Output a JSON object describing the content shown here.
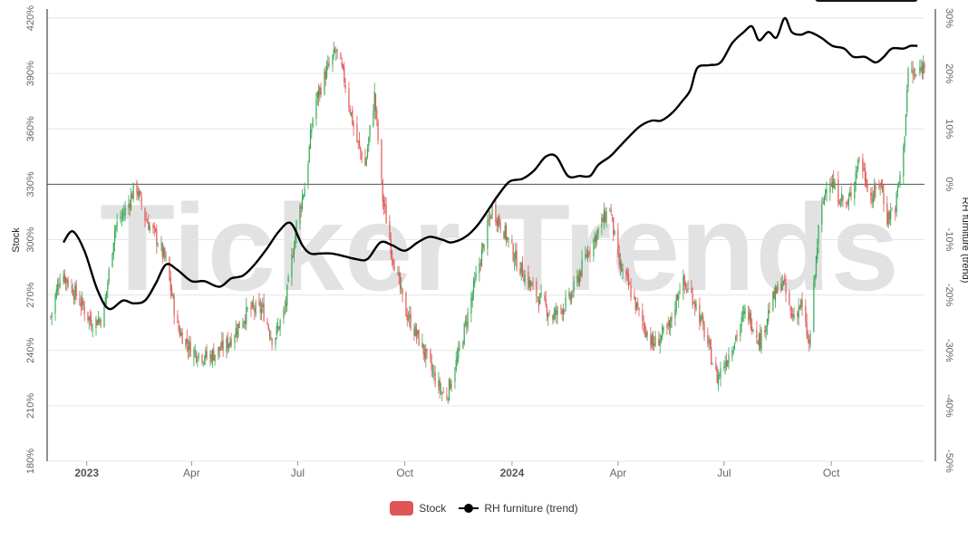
{
  "watermark": "Ticker Trends",
  "colors": {
    "up": "#34a853",
    "down": "#e05555",
    "trend": "#000000",
    "grid": "#e3e6ef",
    "axis": "#666666",
    "bg": "#ffffff"
  },
  "legend": {
    "stock_label": "Stock",
    "trend_label": "RH furniture  (trend)"
  },
  "chart_data": {
    "type": "line",
    "title": "",
    "xlabel": "",
    "ylabel_left": "Stock",
    "ylabel_right": "RH furniture  (trend)",
    "x_range": [
      "2022-11-28",
      "2024-12-20"
    ],
    "x_ticks": [
      {
        "date": "2023-01-01",
        "label": "2023",
        "bold": true
      },
      {
        "date": "2023-04-01",
        "label": "Apr",
        "bold": false
      },
      {
        "date": "2023-07-01",
        "label": "Jul",
        "bold": false
      },
      {
        "date": "2023-10-01",
        "label": "Oct",
        "bold": false
      },
      {
        "date": "2024-01-01",
        "label": "2024",
        "bold": true
      },
      {
        "date": "2024-04-01",
        "label": "Apr",
        "bold": false
      },
      {
        "date": "2024-07-01",
        "label": "Jul",
        "bold": false
      },
      {
        "date": "2024-10-01",
        "label": "Oct",
        "bold": false
      }
    ],
    "y_left": {
      "min": 180,
      "max": 420,
      "unit": "%",
      "ticks": [
        "180%",
        "210%",
        "240%",
        "270%",
        "300%",
        "330%",
        "360%",
        "390%",
        "420%"
      ]
    },
    "y_right": {
      "min": -50,
      "max": 30,
      "unit": "%",
      "ticks": [
        "-50%",
        "-40%",
        "-30%",
        "-20%",
        "-10%",
        "0%",
        "10%",
        "20%",
        "30%"
      ]
    },
    "grid": true,
    "legend_position": "bottom-center",
    "stock_close_anchors": [
      [
        "2022-12-01",
        258
      ],
      [
        "2022-12-10",
        283
      ],
      [
        "2022-12-25",
        268
      ],
      [
        "2023-01-05",
        255
      ],
      [
        "2023-01-15",
        258
      ],
      [
        "2023-01-25",
        306
      ],
      [
        "2023-02-05",
        318
      ],
      [
        "2023-02-12",
        330
      ],
      [
        "2023-02-20",
        312
      ],
      [
        "2023-03-01",
        302
      ],
      [
        "2023-03-10",
        288
      ],
      [
        "2023-03-20",
        252
      ],
      [
        "2023-04-01",
        240
      ],
      [
        "2023-04-15",
        236
      ],
      [
        "2023-05-01",
        243
      ],
      [
        "2023-05-20",
        262
      ],
      [
        "2023-06-01",
        262
      ],
      [
        "2023-06-10",
        245
      ],
      [
        "2023-06-20",
        262
      ],
      [
        "2023-06-30",
        308
      ],
      [
        "2023-07-08",
        332
      ],
      [
        "2023-07-15",
        372
      ],
      [
        "2023-07-25",
        390
      ],
      [
        "2023-08-03",
        402
      ],
      [
        "2023-08-10",
        387
      ],
      [
        "2023-08-20",
        355
      ],
      [
        "2023-08-28",
        340
      ],
      [
        "2023-09-05",
        378
      ],
      [
        "2023-09-12",
        322
      ],
      [
        "2023-09-20",
        293
      ],
      [
        "2023-10-01",
        262
      ],
      [
        "2023-10-15",
        243
      ],
      [
        "2023-10-30",
        220
      ],
      [
        "2023-11-05",
        214
      ],
      [
        "2023-11-15",
        235
      ],
      [
        "2023-11-25",
        262
      ],
      [
        "2023-12-05",
        290
      ],
      [
        "2023-12-15",
        317
      ],
      [
        "2023-12-25",
        305
      ],
      [
        "2024-01-05",
        288
      ],
      [
        "2024-01-20",
        272
      ],
      [
        "2024-02-05",
        258
      ],
      [
        "2024-02-20",
        268
      ],
      [
        "2024-03-05",
        292
      ],
      [
        "2024-03-15",
        305
      ],
      [
        "2024-03-25",
        318
      ],
      [
        "2024-04-01",
        288
      ],
      [
        "2024-04-10",
        275
      ],
      [
        "2024-04-20",
        258
      ],
      [
        "2024-05-01",
        243
      ],
      [
        "2024-05-15",
        252
      ],
      [
        "2024-05-25",
        278
      ],
      [
        "2024-06-05",
        268
      ],
      [
        "2024-06-15",
        248
      ],
      [
        "2024-06-25",
        225
      ],
      [
        "2024-07-05",
        238
      ],
      [
        "2024-07-20",
        262
      ],
      [
        "2024-08-01",
        245
      ],
      [
        "2024-08-10",
        265
      ],
      [
        "2024-08-20",
        278
      ],
      [
        "2024-08-28",
        258
      ],
      [
        "2024-09-05",
        265
      ],
      [
        "2024-09-12",
        242
      ],
      [
        "2024-09-20",
        305
      ],
      [
        "2024-09-28",
        335
      ],
      [
        "2024-10-05",
        326
      ],
      [
        "2024-10-15",
        318
      ],
      [
        "2024-10-25",
        345
      ],
      [
        "2024-11-05",
        322
      ],
      [
        "2024-11-12",
        332
      ],
      [
        "2024-11-18",
        312
      ],
      [
        "2024-11-25",
        318
      ],
      [
        "2024-12-02",
        348
      ],
      [
        "2024-12-06",
        392
      ],
      [
        "2024-12-12",
        388
      ],
      [
        "2024-12-20",
        395
      ]
    ],
    "trend_series": [
      [
        "2022-12-12",
        -10.5
      ],
      [
        "2022-12-20",
        -8.5
      ],
      [
        "2022-12-30",
        -12
      ],
      [
        "2023-01-10",
        -19
      ],
      [
        "2023-01-20",
        -22.5
      ],
      [
        "2023-02-01",
        -21
      ],
      [
        "2023-02-10",
        -21.5
      ],
      [
        "2023-02-20",
        -21
      ],
      [
        "2023-03-01",
        -18
      ],
      [
        "2023-03-10",
        -14.5
      ],
      [
        "2023-03-20",
        -15.5
      ],
      [
        "2023-04-01",
        -17.5
      ],
      [
        "2023-04-12",
        -17.5
      ],
      [
        "2023-04-25",
        -18.5
      ],
      [
        "2023-05-05",
        -17
      ],
      [
        "2023-05-15",
        -16.5
      ],
      [
        "2023-05-25",
        -14.5
      ],
      [
        "2023-06-05",
        -11.5
      ],
      [
        "2023-06-15",
        -8.5
      ],
      [
        "2023-06-25",
        -7
      ],
      [
        "2023-07-05",
        -11
      ],
      [
        "2023-07-12",
        -12.5
      ],
      [
        "2023-07-20",
        -12.5
      ],
      [
        "2023-07-30",
        -12.5
      ],
      [
        "2023-08-10",
        -13
      ],
      [
        "2023-08-20",
        -13.5
      ],
      [
        "2023-08-30",
        -13.5
      ],
      [
        "2023-09-10",
        -10.5
      ],
      [
        "2023-09-20",
        -11
      ],
      [
        "2023-10-01",
        -12
      ],
      [
        "2023-10-12",
        -10.5
      ],
      [
        "2023-10-22",
        -9.5
      ],
      [
        "2023-11-02",
        -10
      ],
      [
        "2023-11-10",
        -10.5
      ],
      [
        "2023-11-22",
        -9.5
      ],
      [
        "2023-12-02",
        -7.5
      ],
      [
        "2023-12-12",
        -4.5
      ],
      [
        "2023-12-20",
        -2
      ],
      [
        "2023-12-30",
        0.5
      ],
      [
        "2024-01-10",
        1
      ],
      [
        "2024-01-20",
        2.5
      ],
      [
        "2024-01-30",
        5
      ],
      [
        "2024-02-08",
        5
      ],
      [
        "2024-02-18",
        1.5
      ],
      [
        "2024-02-28",
        1.5
      ],
      [
        "2024-03-08",
        1.5
      ],
      [
        "2024-03-15",
        3.5
      ],
      [
        "2024-03-25",
        5
      ],
      [
        "2024-04-01",
        6.5
      ],
      [
        "2024-04-10",
        8.5
      ],
      [
        "2024-04-20",
        10.5
      ],
      [
        "2024-04-30",
        11.5
      ],
      [
        "2024-05-08",
        11.5
      ],
      [
        "2024-05-18",
        13
      ],
      [
        "2024-05-26",
        15
      ],
      [
        "2024-06-02",
        17
      ],
      [
        "2024-06-08",
        21
      ],
      [
        "2024-06-18",
        21.5
      ],
      [
        "2024-06-28",
        22
      ],
      [
        "2024-07-08",
        25.5
      ],
      [
        "2024-07-18",
        27.5
      ],
      [
        "2024-07-25",
        28.5
      ],
      [
        "2024-07-31",
        26
      ],
      [
        "2024-08-08",
        27.5
      ],
      [
        "2024-08-15",
        26.5
      ],
      [
        "2024-08-22",
        30
      ],
      [
        "2024-08-28",
        27.5
      ],
      [
        "2024-09-05",
        27
      ],
      [
        "2024-09-12",
        27.5
      ],
      [
        "2024-09-22",
        26.5
      ],
      [
        "2024-10-02",
        25
      ],
      [
        "2024-10-12",
        24.5
      ],
      [
        "2024-10-20",
        23
      ],
      [
        "2024-10-30",
        23
      ],
      [
        "2024-11-08",
        22
      ],
      [
        "2024-11-15",
        23
      ],
      [
        "2024-11-22",
        24.5
      ],
      [
        "2024-12-02",
        24.5
      ],
      [
        "2024-12-08",
        25
      ],
      [
        "2024-12-14",
        25
      ]
    ]
  }
}
